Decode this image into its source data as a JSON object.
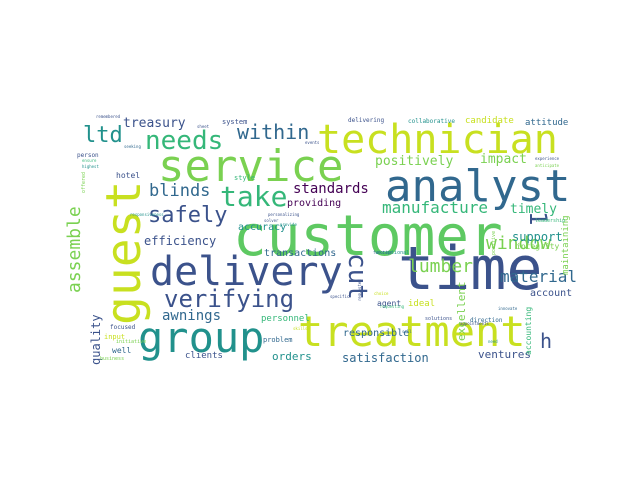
{
  "colors": {
    "yellow_green": "#c8e020",
    "green": "#5ec962",
    "teal": "#21918c",
    "blue": "#3b528b",
    "dark_blue": "#31688e",
    "purple": "#440154",
    "light_green": "#7ad151",
    "aqua": "#35b779"
  },
  "words": [
    {
      "text": "customer",
      "color": "#5ec962"
    },
    {
      "text": "service",
      "color": "#7ad151"
    },
    {
      "text": "technician",
      "color": "#c8e020"
    },
    {
      "text": "analyst",
      "color": "#31688e"
    },
    {
      "text": "guest",
      "color": "#c8e020"
    },
    {
      "text": "delivery",
      "color": "#3b528b"
    },
    {
      "text": "time",
      "color": "#3b528b"
    },
    {
      "text": "treatment",
      "color": "#c8e020"
    },
    {
      "text": "group",
      "color": "#21918c"
    },
    {
      "text": "verifying",
      "color": "#3b528b"
    },
    {
      "text": "take",
      "color": "#35b779"
    },
    {
      "text": "needs",
      "color": "#35b779"
    },
    {
      "text": "safely",
      "color": "#3b528b"
    },
    {
      "text": "ltd",
      "color": "#21918c"
    },
    {
      "text": "within",
      "color": "#31688e"
    },
    {
      "text": "cut",
      "color": "#3b528b"
    },
    {
      "text": "1",
      "color": "#3b528b"
    },
    {
      "text": "h",
      "color": "#3b528b"
    },
    {
      "text": "window",
      "color": "#7ad151"
    },
    {
      "text": "material",
      "color": "#31688e"
    },
    {
      "text": "lumber",
      "color": "#7ad151"
    },
    {
      "text": "blinds",
      "color": "#31688e"
    },
    {
      "text": "assemble",
      "color": "#7ad151"
    },
    {
      "text": "manufacture",
      "color": "#35b779"
    },
    {
      "text": "awnings",
      "color": "#31688e"
    },
    {
      "text": "standards",
      "color": "#440154"
    },
    {
      "text": "efficiency",
      "color": "#3b528b"
    },
    {
      "text": "positively",
      "color": "#7ad151"
    },
    {
      "text": "impact",
      "color": "#7ad151"
    },
    {
      "text": "timely",
      "color": "#35b779"
    },
    {
      "text": "treasury",
      "color": "#3b528b"
    },
    {
      "text": "support",
      "color": "#21918c"
    },
    {
      "text": "quality",
      "color": "#3b528b"
    },
    {
      "text": "satisfaction",
      "color": "#31688e"
    },
    {
      "text": "orders",
      "color": "#21918c"
    },
    {
      "text": "ventures",
      "color": "#3b528b"
    },
    {
      "text": "transactions",
      "color": "#31688e"
    },
    {
      "text": "excellent",
      "color": "#7ad151"
    },
    {
      "text": "responsible",
      "color": "#31688e"
    },
    {
      "text": "account",
      "color": "#3b528b"
    },
    {
      "text": "maintaining",
      "color": "#7ad151"
    },
    {
      "text": "integrity",
      "color": "#7ad151"
    },
    {
      "text": "providing",
      "color": "#440154"
    },
    {
      "text": "accuracy",
      "color": "#21918c"
    },
    {
      "text": "personnel",
      "color": "#35b779"
    },
    {
      "text": "clients",
      "color": "#3b528b"
    },
    {
      "text": "well",
      "color": "#31688e"
    },
    {
      "text": "accounting",
      "color": "#35b779"
    },
    {
      "text": "candidate",
      "color": "#c8e020"
    },
    {
      "text": "attitude",
      "color": "#31688e"
    },
    {
      "text": "collaborative",
      "color": "#21918c"
    },
    {
      "text": "delivering",
      "color": "#3b528b"
    },
    {
      "text": "system",
      "color": "#3b528b"
    },
    {
      "text": "style",
      "color": "#35b779"
    },
    {
      "text": "hotel",
      "color": "#3b528b"
    },
    {
      "text": "agent",
      "color": "#3b528b"
    },
    {
      "text": "ideal",
      "color": "#c8e020"
    },
    {
      "text": "problem",
      "color": "#31688e"
    },
    {
      "text": "solutions",
      "color": "#3b528b"
    },
    {
      "text": "direction",
      "color": "#31688e"
    },
    {
      "text": "input",
      "color": "#c8e020"
    },
    {
      "text": "focused",
      "color": "#3b528b"
    },
    {
      "text": "person",
      "color": "#3b528b"
    },
    {
      "text": "exceptional",
      "color": "#21918c"
    },
    {
      "text": "leadership",
      "color": "#35b779"
    },
    {
      "text": "positive",
      "color": "#7ad151"
    },
    {
      "text": "responsiveness",
      "color": "#21918c"
    },
    {
      "text": "initiative",
      "color": "#7ad151"
    },
    {
      "text": "offered",
      "color": "#7ad151"
    },
    {
      "text": "business",
      "color": "#7ad151"
    },
    {
      "text": "specific",
      "color": "#3b528b"
    },
    {
      "text": "requested",
      "color": "#3b528b"
    },
    {
      "text": "appointments",
      "color": "#3b528b"
    },
    {
      "text": "experience",
      "color": "#3b528b"
    },
    {
      "text": "anticipate",
      "color": "#7ad151"
    },
    {
      "text": "solver",
      "color": "#3b528b"
    },
    {
      "text": "personalizing",
      "color": "#3b528b"
    },
    {
      "text": "provide",
      "color": "#21918c"
    },
    {
      "text": "function",
      "color": "#31688e"
    },
    {
      "text": "choice",
      "color": "#c8e020"
    },
    {
      "text": "remembered",
      "color": "#3b528b"
    },
    {
      "text": "highest",
      "color": "#21918c"
    },
    {
      "text": "ensure",
      "color": "#35b779"
    },
    {
      "text": "events",
      "color": "#3b528b"
    },
    {
      "text": "sheet",
      "color": "#3b528b"
    },
    {
      "text": "skills",
      "color": "#c8e020"
    },
    {
      "text": "sell",
      "color": "#31688e"
    },
    {
      "text": "need",
      "color": "#21918c"
    },
    {
      "text": "innovate",
      "color": "#31688e"
    },
    {
      "text": "seeking",
      "color": "#31688e"
    },
    {
      "text": "requesting",
      "color": "#35b779"
    }
  ]
}
